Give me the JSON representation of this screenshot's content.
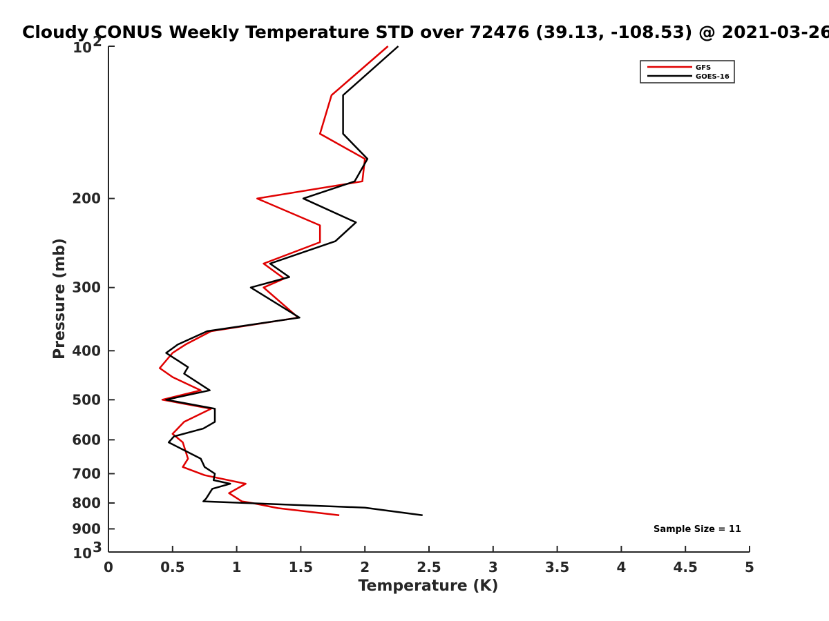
{
  "chart_data": {
    "type": "line",
    "title": "Cloudy CONUS Weekly Temperature STD over 72476 (39.13, -108.53) @ 2021-03-26",
    "xlabel": "Temperature (K)",
    "ylabel": "Pressure (mb)",
    "xlim": [
      0,
      5
    ],
    "ylim": [
      100,
      1000
    ],
    "y_scale": "log",
    "y_reversed": true,
    "x_ticks": [
      "0",
      "0.5",
      "1",
      "1.5",
      "2",
      "2.5",
      "3",
      "3.5",
      "4",
      "4.5",
      "5"
    ],
    "y_ticks": [
      {
        "value": 100,
        "base": "10",
        "exp": "2"
      },
      {
        "value": 200,
        "label": "200"
      },
      {
        "value": 300,
        "label": "300"
      },
      {
        "value": 400,
        "label": "400"
      },
      {
        "value": 500,
        "label": "500"
      },
      {
        "value": 600,
        "label": "600"
      },
      {
        "value": 700,
        "label": "700"
      },
      {
        "value": 800,
        "label": "800"
      },
      {
        "value": 900,
        "label": "900"
      },
      {
        "value": 1000,
        "base": "10",
        "exp": "3"
      }
    ],
    "legend_position": "top-right",
    "grid": false,
    "annotation": "Sample Size = 11",
    "series": [
      {
        "name": "GFS",
        "color": "#e00000",
        "x": [
          2.18,
          1.74,
          1.65,
          2.0,
          1.98,
          1.16,
          1.65,
          1.65,
          1.21,
          1.37,
          1.21,
          1.48,
          0.8,
          0.6,
          0.5,
          0.4,
          0.5,
          0.72,
          0.42,
          0.8,
          0.59,
          0.5,
          0.58,
          0.62,
          0.58,
          0.75,
          1.07,
          0.94,
          1.04,
          1.12,
          1.32,
          1.8
        ],
        "y": [
          100,
          125,
          149,
          167,
          185,
          200,
          226,
          244,
          269,
          288,
          300,
          344,
          366,
          389,
          404,
          433,
          451,
          479,
          500,
          521,
          553,
          584,
          607,
          654,
          679,
          705,
          733,
          765,
          794,
          800,
          819,
          846
        ]
      },
      {
        "name": "GOES-16",
        "color": "#000000",
        "x": [
          2.26,
          1.83,
          1.83,
          2.02,
          1.92,
          1.52,
          1.93,
          1.77,
          1.26,
          1.41,
          1.11,
          1.49,
          0.77,
          0.54,
          0.45,
          0.62,
          0.59,
          0.79,
          0.45,
          0.83,
          0.83,
          0.74,
          0.51,
          0.47,
          0.72,
          0.75,
          0.83,
          0.82,
          0.95,
          0.81,
          0.76,
          0.74,
          2.0,
          2.45
        ],
        "y": [
          100,
          125,
          149,
          167,
          185,
          200,
          223,
          243,
          269,
          286,
          300,
          344,
          366,
          389,
          404,
          431,
          444,
          479,
          500,
          521,
          553,
          570,
          591,
          607,
          654,
          679,
          700,
          721,
          733,
          750,
          785,
          794,
          817,
          846
        ]
      }
    ]
  }
}
